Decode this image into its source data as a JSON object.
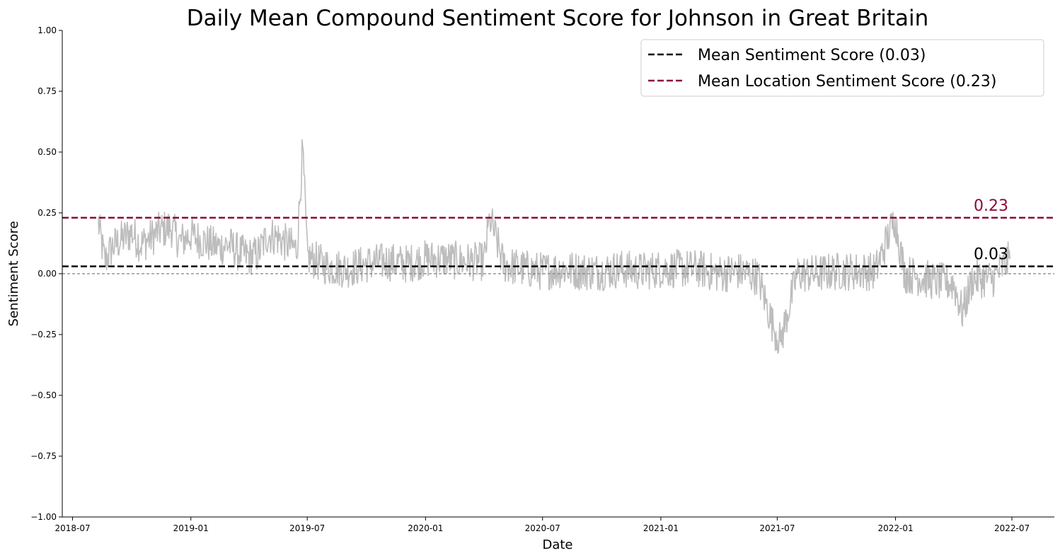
{
  "chart_data": {
    "type": "line",
    "title": "Daily Mean Compound Sentiment Score for Johnson in Great Britain",
    "xlabel": "Date",
    "ylabel": "Sentiment Score",
    "xlim": [
      "2018-06-15",
      "2022-09-05"
    ],
    "ylim": [
      -1.0,
      1.0
    ],
    "x_ticks": [
      "2018-07",
      "2019-01",
      "2019-07",
      "2020-01",
      "2020-07",
      "2021-01",
      "2021-07",
      "2022-01",
      "2022-07"
    ],
    "y_ticks": [
      "1.00",
      "0.75",
      "0.50",
      "0.25",
      "0.00",
      "−0.25",
      "−0.50",
      "−0.75",
      "−1.00"
    ],
    "grid": false,
    "legend_position": "top-right",
    "series": [
      {
        "color": "#bdbdbd",
        "points": [
          [
            "2018-08-10",
            0.21
          ],
          [
            "2018-08-20",
            0.05
          ],
          [
            "2018-09-01",
            0.11
          ],
          [
            "2018-09-15",
            0.14
          ],
          [
            "2018-10-01",
            0.17
          ],
          [
            "2018-10-15",
            0.12
          ],
          [
            "2018-11-01",
            0.15
          ],
          [
            "2018-11-15",
            0.18
          ],
          [
            "2018-12-01",
            0.19
          ],
          [
            "2018-12-15",
            0.13
          ],
          [
            "2019-01-01",
            0.16
          ],
          [
            "2019-01-15",
            0.14
          ],
          [
            "2019-02-01",
            0.12
          ],
          [
            "2019-02-15",
            0.11
          ],
          [
            "2019-03-01",
            0.12
          ],
          [
            "2019-03-15",
            0.09
          ],
          [
            "2019-04-01",
            0.07
          ],
          [
            "2019-04-15",
            0.08
          ],
          [
            "2019-05-01",
            0.16
          ],
          [
            "2019-05-15",
            0.15
          ],
          [
            "2019-06-01",
            0.12
          ],
          [
            "2019-06-15",
            0.1
          ],
          [
            "2019-06-24",
            0.52
          ],
          [
            "2019-07-01",
            0.07
          ],
          [
            "2019-08-01",
            0.03
          ],
          [
            "2019-09-01",
            0.02
          ],
          [
            "2019-10-01",
            0.04
          ],
          [
            "2019-11-01",
            0.05
          ],
          [
            "2019-12-01",
            0.04
          ],
          [
            "2020-01-01",
            0.06
          ],
          [
            "2020-02-01",
            0.06
          ],
          [
            "2020-03-01",
            0.05
          ],
          [
            "2020-04-01",
            0.05
          ],
          [
            "2020-04-10",
            0.23
          ],
          [
            "2020-05-01",
            0.04
          ],
          [
            "2020-06-01",
            0.02
          ],
          [
            "2020-07-01",
            0.01
          ],
          [
            "2020-08-01",
            0.02
          ],
          [
            "2020-09-01",
            0.01
          ],
          [
            "2020-10-01",
            0.01
          ],
          [
            "2020-11-01",
            0.02
          ],
          [
            "2020-12-01",
            0.01
          ],
          [
            "2021-01-01",
            0.02
          ],
          [
            "2021-02-01",
            0.02
          ],
          [
            "2021-03-01",
            0.02
          ],
          [
            "2021-04-01",
            0.0
          ],
          [
            "2021-05-01",
            0.01
          ],
          [
            "2021-06-01",
            -0.01
          ],
          [
            "2021-06-25",
            -0.22
          ],
          [
            "2021-07-06",
            -0.28
          ],
          [
            "2021-08-01",
            0.0
          ],
          [
            "2021-09-01",
            0.0
          ],
          [
            "2021-10-01",
            0.01
          ],
          [
            "2021-11-01",
            0.01
          ],
          [
            "2021-12-01",
            0.01
          ],
          [
            "2021-12-31",
            0.23
          ],
          [
            "2022-01-15",
            0.0
          ],
          [
            "2022-02-01",
            -0.01
          ],
          [
            "2022-03-01",
            -0.03
          ],
          [
            "2022-04-01",
            -0.04
          ],
          [
            "2022-04-15",
            -0.16
          ],
          [
            "2022-05-01",
            -0.02
          ],
          [
            "2022-06-01",
            -0.02
          ],
          [
            "2022-06-28",
            0.06
          ]
        ]
      }
    ],
    "reference_lines": [
      {
        "name": "Mean Sentiment Score (0.03)",
        "value": 0.03,
        "label": "0.03",
        "color": "#000000",
        "style": "dashed"
      },
      {
        "name": "Mean Location Sentiment Score (0.23)",
        "value": 0.23,
        "label": "0.23",
        "color": "#8b0a3a",
        "style": "dashed"
      },
      {
        "value": 0.0,
        "color": "#808080",
        "style": "dashed"
      }
    ]
  }
}
